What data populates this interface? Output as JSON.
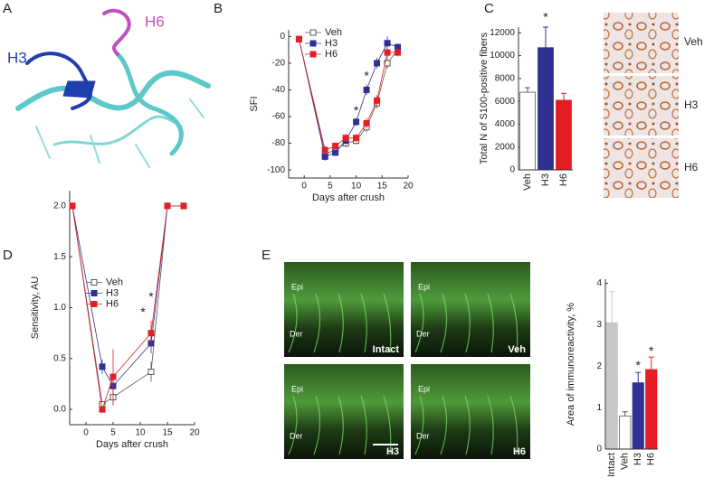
{
  "panels": [
    "A",
    "B",
    "C",
    "D",
    "E"
  ],
  "structure_labels": [
    "H3",
    "H6"
  ],
  "stain_labels": [
    "Veh",
    "H3",
    "H6"
  ],
  "micrographs": [
    {
      "epi": "Epi",
      "der": "Der",
      "label": "Intact"
    },
    {
      "epi": "Epi",
      "der": "Der",
      "label": "Veh"
    },
    {
      "epi": "Epi",
      "der": "Der",
      "label": "H3"
    },
    {
      "epi": "Epi",
      "der": "Der",
      "label": "H6"
    }
  ],
  "chart_data": [
    {
      "type": "line",
      "xlabel": "Days after crush",
      "ylabel": "SFI",
      "x": [
        -1,
        4,
        6,
        8,
        10,
        12,
        14,
        16,
        18
      ],
      "series": [
        {
          "name": "Veh",
          "color": "#555555",
          "marker": "open",
          "values": [
            -2,
            -88,
            -85,
            -80,
            -78,
            -68,
            -50,
            -20,
            -10
          ],
          "errors": [
            0,
            3,
            2,
            3,
            3,
            4,
            4,
            4,
            3
          ]
        },
        {
          "name": "H3",
          "color": "#2e3192",
          "marker": "filled",
          "values": [
            -2,
            -90,
            -87,
            -78,
            -64,
            -40,
            -20,
            -5,
            -8
          ],
          "errors": [
            0,
            3,
            2,
            3,
            3,
            4,
            4,
            5,
            3
          ]
        },
        {
          "name": "H6",
          "color": "#e31e24",
          "marker": "filled",
          "values": [
            -2,
            -85,
            -82,
            -76,
            -76,
            -65,
            -48,
            -12,
            -12
          ],
          "errors": [
            0,
            3,
            2,
            3,
            3,
            4,
            4,
            4,
            3
          ]
        }
      ],
      "xlim": [
        -3,
        20
      ],
      "ylim": [
        -106,
        5
      ],
      "xticks": [
        0,
        5,
        10,
        15,
        20
      ],
      "yticks": [
        -100,
        -80,
        -60,
        -40,
        -20,
        0
      ],
      "legend": "upper left",
      "annotations": [
        {
          "text": "*",
          "x": 10,
          "y": -56
        },
        {
          "text": "*",
          "x": 12,
          "y": -30
        }
      ]
    },
    {
      "type": "bar",
      "ylabel": "Total N of S100-positive fibers",
      "categories": [
        "Veh",
        "H3",
        "H6"
      ],
      "values": [
        6800,
        10700,
        6100
      ],
      "errors": [
        400,
        1800,
        600
      ],
      "colors": [
        "#ffffff",
        "#2e3192",
        "#e31e24"
      ],
      "ylim": [
        0,
        12500
      ],
      "yticks": [
        0,
        2000,
        4000,
        6000,
        8000,
        10000,
        12000
      ],
      "xtick_rotation": -90,
      "annotations": [
        {
          "text": "*",
          "x": "H3",
          "y": 13300
        }
      ]
    },
    {
      "type": "line",
      "xlabel": "Days after crush",
      "ylabel": "Sensitivity, AU",
      "x": [
        -2.5,
        3,
        5,
        12,
        15,
        18
      ],
      "series": [
        {
          "name": "Veh",
          "color": "#555555",
          "marker": "open",
          "values": [
            2,
            0.05,
            0.12,
            0.37,
            2,
            2
          ],
          "errors": [
            0,
            0,
            0.08,
            0.1,
            0,
            0
          ]
        },
        {
          "name": "H3",
          "color": "#2e3192",
          "marker": "filled",
          "values": [
            2,
            0.42,
            0.23,
            0.65,
            2,
            2
          ],
          "errors": [
            0,
            0.07,
            0.1,
            0.1,
            0,
            0
          ]
        },
        {
          "name": "H6",
          "color": "#e31e24",
          "marker": "filled",
          "values": [
            2,
            0,
            0.32,
            0.75,
            2,
            2
          ],
          "errors": [
            0,
            0,
            0.27,
            0.12,
            0,
            0
          ]
        }
      ],
      "xlim": [
        -3,
        20
      ],
      "ylim": [
        -0.15,
        2.15
      ],
      "xticks": [
        0,
        5,
        10,
        15,
        20
      ],
      "yticks": [
        {
          "value": 0,
          "label": "0.0"
        },
        {
          "value": 0.5,
          "label": "0.5"
        },
        {
          "value": 1,
          "label": "1.0"
        },
        {
          "value": 1.5,
          "label": "1.5"
        },
        {
          "value": 2,
          "label": "2.0"
        }
      ],
      "legend": "center left",
      "annotations": [
        {
          "text": "*",
          "x": 10.5,
          "y": 0.95
        },
        {
          "text": "*",
          "x": 12,
          "y": 1.1
        }
      ]
    },
    {
      "type": "bar",
      "ylabel": "Area of immunoreactivity, %",
      "categories": [
        "Intact",
        "Veh",
        "H3",
        "H6"
      ],
      "values": [
        3.05,
        0.8,
        1.6,
        1.92
      ],
      "errors": [
        0.75,
        0.1,
        0.25,
        0.3
      ],
      "colors": [
        "#c8c8c8",
        "#ffffff",
        "#2e3192",
        "#e31e24"
      ],
      "ylim": [
        0,
        4.1
      ],
      "yticks": [
        0,
        1,
        2,
        3,
        4
      ],
      "xtick_rotation": -90,
      "annotations": [
        {
          "text": "*",
          "x": "H3",
          "y": 2.0
        },
        {
          "text": "*",
          "x": "H6",
          "y": 2.35
        }
      ]
    }
  ]
}
